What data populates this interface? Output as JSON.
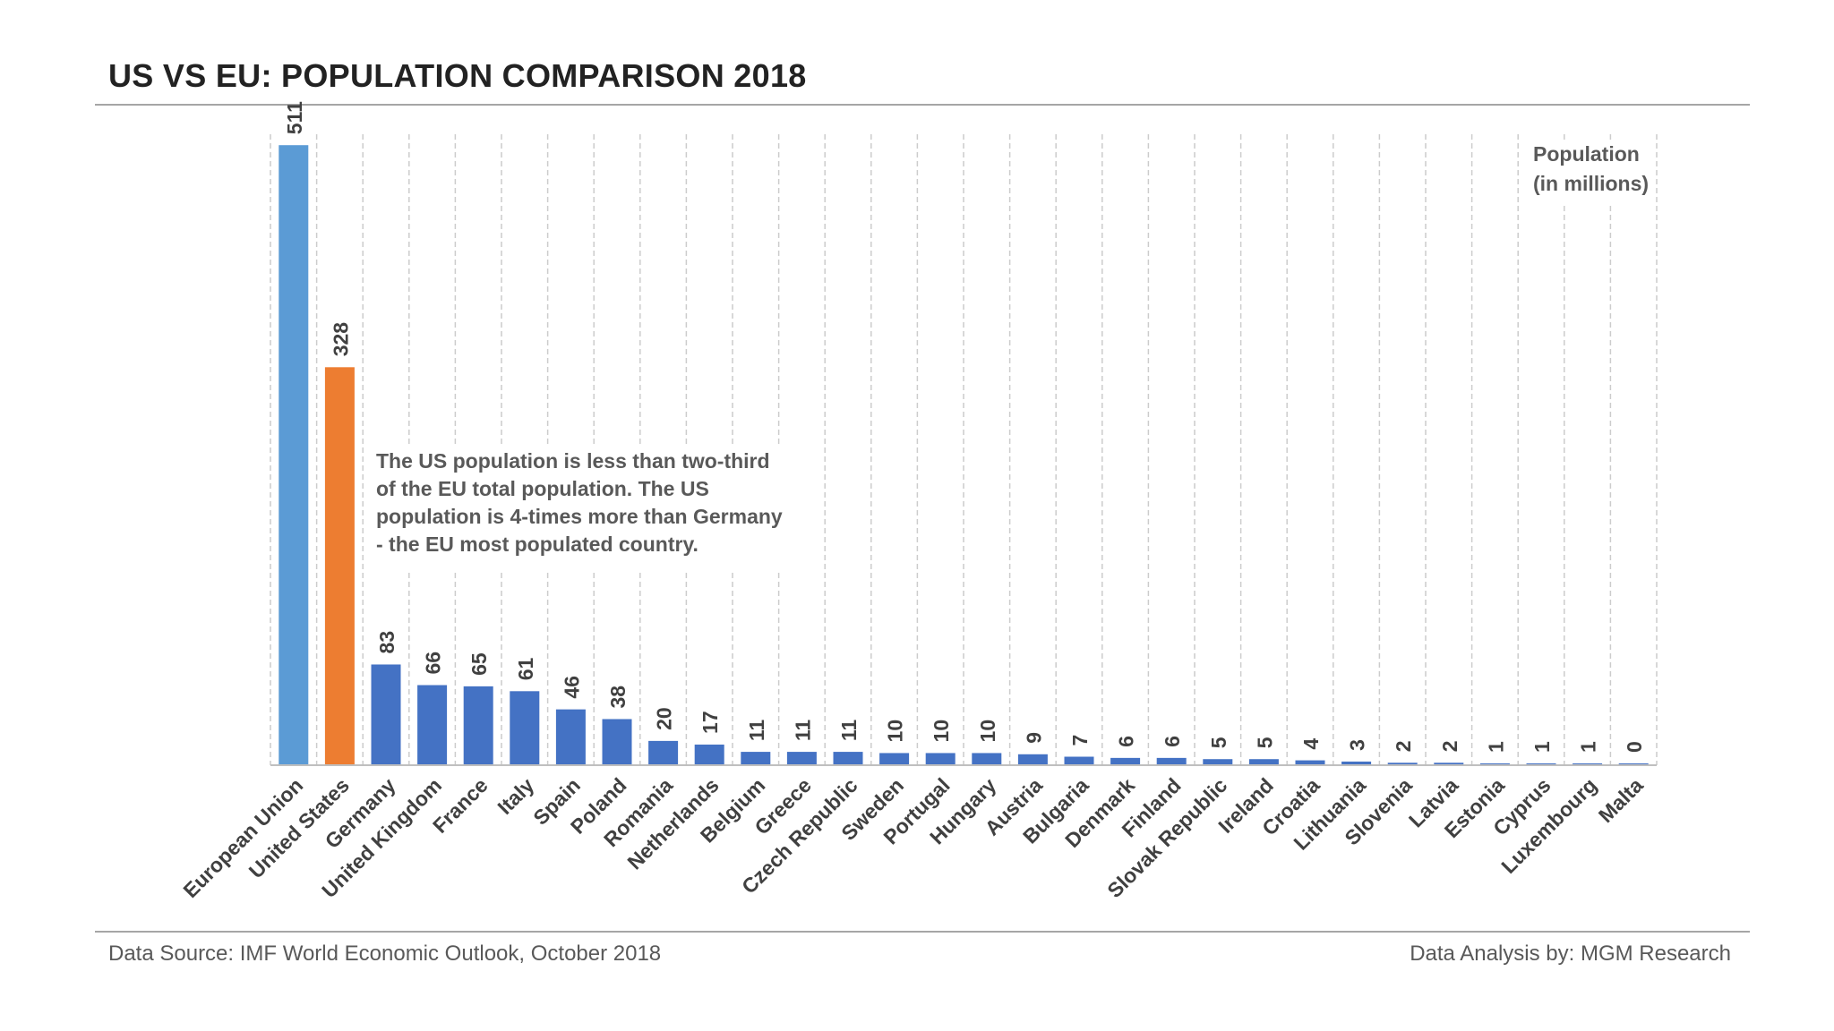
{
  "title": "US VS EU: POPULATION COMPARISON 2018",
  "footer": {
    "source": "Data Source: IMF World Economic Outlook, October 2018",
    "credit": "Data Analysis by: MGM Research"
  },
  "unit_label": {
    "line1": "Population",
    "line2": "(in millions)"
  },
  "annotation": "The US population is less than two-third of the EU total population. The US population is 4-times more than Germany - the EU most populated country.",
  "colors": {
    "eu": "#5b9bd5",
    "us": "#ed7d31",
    "country": "#4472c4",
    "grid": "#cccccc",
    "axis": "#bfbfbf",
    "text": "#404040"
  },
  "chart_data": {
    "type": "bar",
    "title": "US VS EU: POPULATION COMPARISON 2018",
    "ylabel": "Population (in millions)",
    "ylim": [
      0,
      520
    ],
    "grid": "vertical dashed lines between bars",
    "data_labels": "rotated, above bars",
    "categories": [
      "European Union",
      "United States",
      "Germany",
      "United Kingdom",
      "France",
      "Italy",
      "Spain",
      "Poland",
      "Romania",
      "Netherlands",
      "Belgium",
      "Greece",
      "Czech Republic",
      "Sweden",
      "Portugal",
      "Hungary",
      "Austria",
      "Bulgaria",
      "Denmark",
      "Finland",
      "Slovak Republic",
      "Ireland",
      "Croatia",
      "Lithuania",
      "Slovenia",
      "Latvia",
      "Estonia",
      "Cyprus",
      "Luxembourg",
      "Malta"
    ],
    "values": [
      511,
      328,
      83,
      66,
      65,
      61,
      46,
      38,
      20,
      17,
      11,
      11,
      11,
      10,
      10,
      10,
      9,
      7,
      6,
      6,
      5,
      5,
      4,
      3,
      2,
      2,
      1,
      1,
      1,
      0
    ],
    "bar_colors": [
      "#5b9bd5",
      "#ed7d31",
      "#4472c4",
      "#4472c4",
      "#4472c4",
      "#4472c4",
      "#4472c4",
      "#4472c4",
      "#4472c4",
      "#4472c4",
      "#4472c4",
      "#4472c4",
      "#4472c4",
      "#4472c4",
      "#4472c4",
      "#4472c4",
      "#4472c4",
      "#4472c4",
      "#4472c4",
      "#4472c4",
      "#4472c4",
      "#4472c4",
      "#4472c4",
      "#4472c4",
      "#4472c4",
      "#4472c4",
      "#4472c4",
      "#4472c4",
      "#4472c4",
      "#4472c4"
    ]
  }
}
